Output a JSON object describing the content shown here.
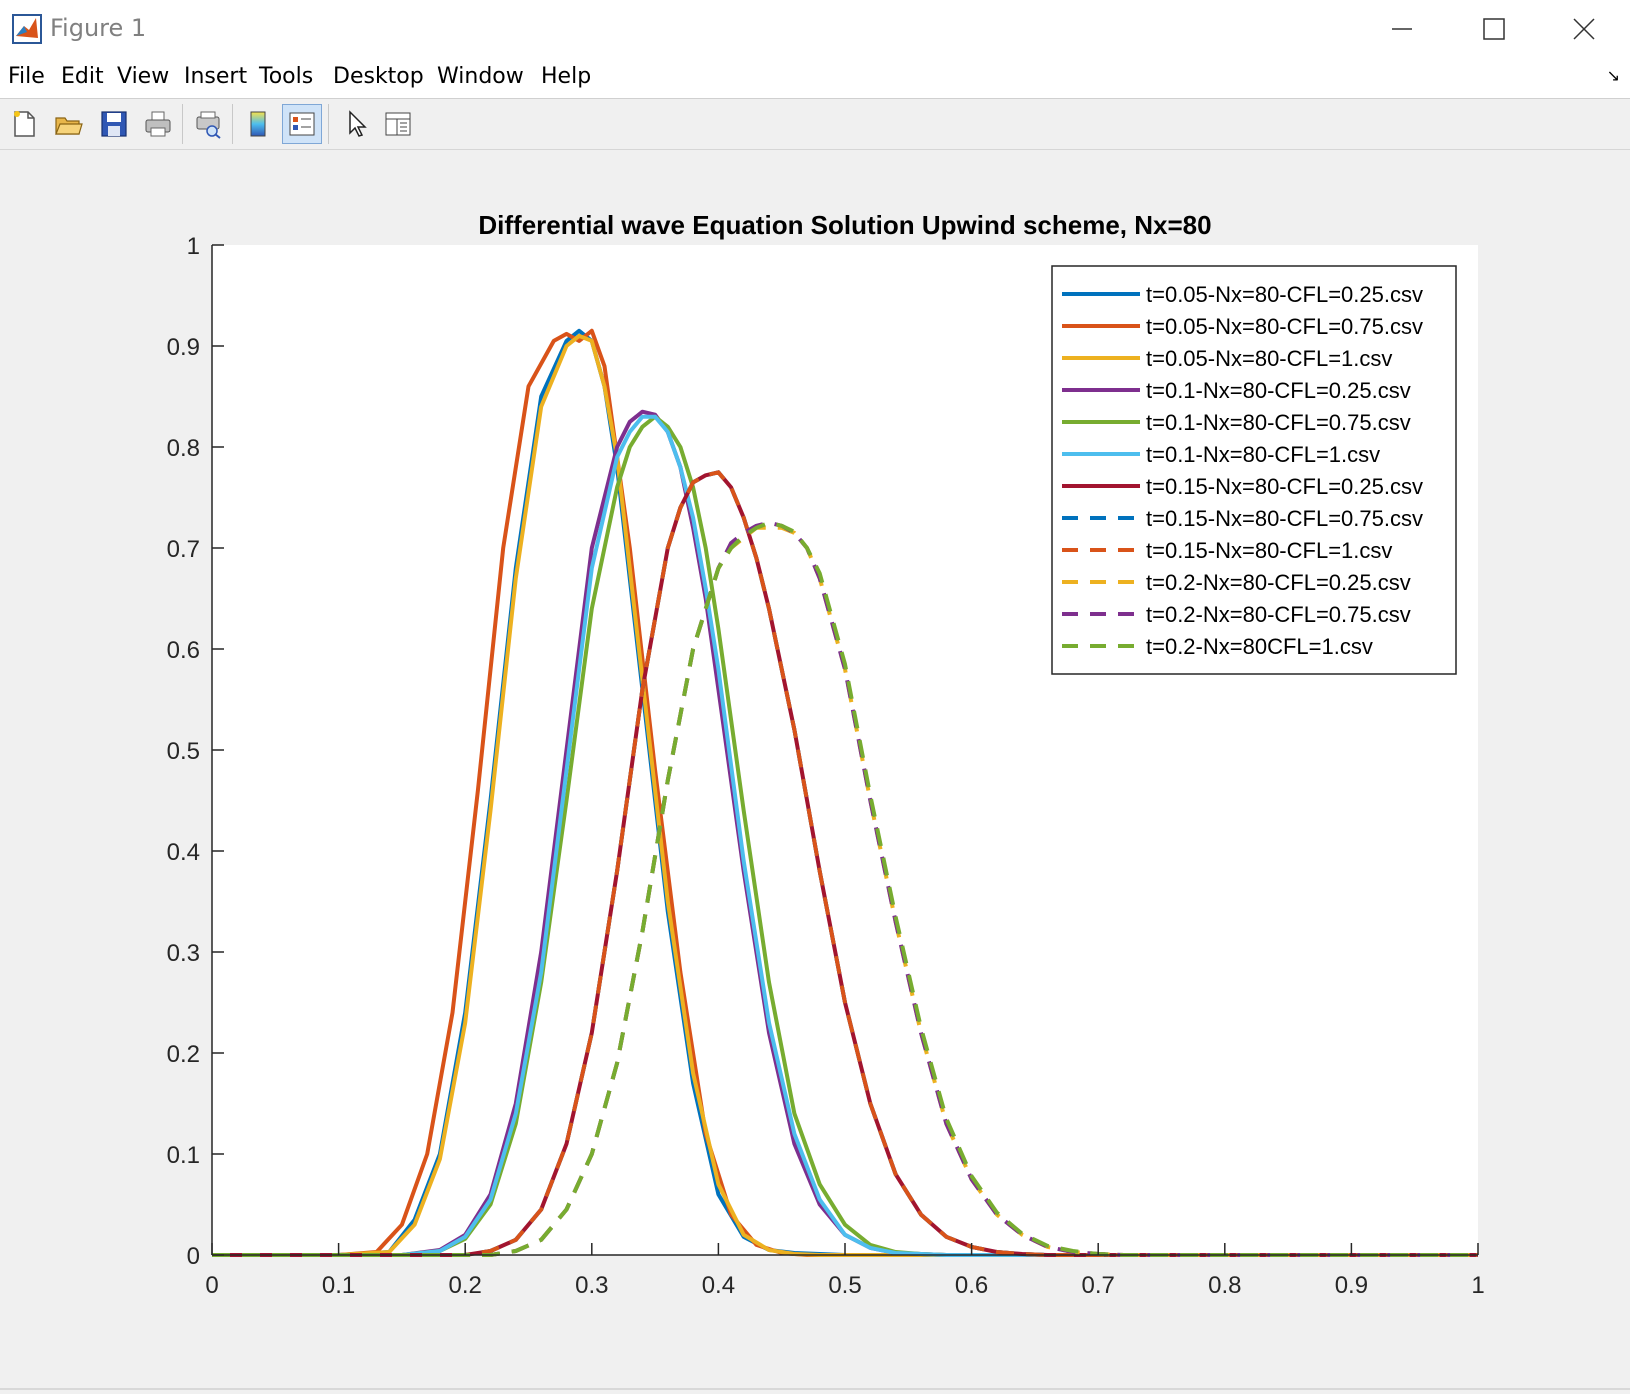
{
  "window": {
    "title": "Figure 1"
  },
  "menu": [
    "File",
    "Edit",
    "View",
    "Insert",
    "Tools",
    "Desktop",
    "Window",
    "Help"
  ],
  "toolbar": {
    "icons": [
      "new-figure-icon",
      "open-file-icon",
      "save-icon",
      "print-icon",
      "print-preview-icon",
      "colorbar-icon",
      "legend-icon",
      "edit-plot-icon",
      "property-inspector-icon"
    ]
  },
  "chart_data": {
    "type": "line",
    "title": "Differential wave Equation Solution Upwind scheme, Nx=80",
    "xlabel": "",
    "ylabel": "",
    "xlim": [
      0,
      1
    ],
    "ylim": [
      0,
      1
    ],
    "x_ticks": [
      "0",
      "0.1",
      "0.2",
      "0.3",
      "0.4",
      "0.5",
      "0.6",
      "0.7",
      "0.8",
      "0.9",
      "1"
    ],
    "y_ticks": [
      "0",
      "0.1",
      "0.2",
      "0.3",
      "0.4",
      "0.5",
      "0.6",
      "0.7",
      "0.8",
      "0.9",
      "1"
    ],
    "grid": false,
    "legend_position": "top-right",
    "series": [
      {
        "name": "t=0.05-Nx=80-CFL=0.25.csv",
        "color": "#0072BD",
        "dashed": false,
        "x": [
          0.0,
          0.1,
          0.14,
          0.16,
          0.18,
          0.2,
          0.22,
          0.24,
          0.26,
          0.28,
          0.29,
          0.3,
          0.31,
          0.32,
          0.34,
          0.36,
          0.38,
          0.4,
          0.42,
          0.44,
          0.46,
          0.48,
          0.5,
          0.55,
          1.0
        ],
        "y": [
          0,
          0,
          0.003,
          0.035,
          0.1,
          0.24,
          0.45,
          0.68,
          0.85,
          0.905,
          0.915,
          0.905,
          0.86,
          0.78,
          0.56,
          0.34,
          0.17,
          0.06,
          0.018,
          0.005,
          0.002,
          0.001,
          0,
          0,
          0
        ]
      },
      {
        "name": "t=0.05-Nx=80-CFL=0.75.csv",
        "color": "#D95319",
        "dashed": false,
        "x": [
          0.0,
          0.1,
          0.13,
          0.15,
          0.17,
          0.19,
          0.21,
          0.23,
          0.25,
          0.27,
          0.28,
          0.29,
          0.3,
          0.31,
          0.33,
          0.35,
          0.37,
          0.39,
          0.41,
          0.43,
          0.45,
          0.47,
          0.5,
          1.0
        ],
        "y": [
          0,
          0,
          0.003,
          0.03,
          0.1,
          0.24,
          0.46,
          0.7,
          0.86,
          0.905,
          0.912,
          0.905,
          0.915,
          0.88,
          0.7,
          0.48,
          0.28,
          0.12,
          0.04,
          0.01,
          0.002,
          0,
          0,
          0
        ]
      },
      {
        "name": "t=0.05-Nx=80-CFL=1.csv",
        "color": "#EDB120",
        "dashed": false,
        "x": [
          0.0,
          0.1,
          0.14,
          0.16,
          0.18,
          0.2,
          0.22,
          0.24,
          0.26,
          0.28,
          0.29,
          0.3,
          0.31,
          0.32,
          0.34,
          0.36,
          0.38,
          0.4,
          0.42,
          0.44,
          0.46,
          0.48,
          0.5,
          1.0
        ],
        "y": [
          0,
          0,
          0.003,
          0.03,
          0.095,
          0.23,
          0.44,
          0.67,
          0.84,
          0.9,
          0.91,
          0.905,
          0.86,
          0.79,
          0.57,
          0.35,
          0.18,
          0.07,
          0.02,
          0.005,
          0.001,
          0,
          0,
          0
        ]
      },
      {
        "name": "t=0.1-Nx=80-CFL=0.25.csv",
        "color": "#7E2F8E",
        "dashed": false,
        "x": [
          0.0,
          0.15,
          0.18,
          0.2,
          0.22,
          0.24,
          0.26,
          0.28,
          0.3,
          0.32,
          0.33,
          0.34,
          0.35,
          0.36,
          0.37,
          0.38,
          0.39,
          0.4,
          0.42,
          0.44,
          0.46,
          0.48,
          0.5,
          0.52,
          0.54,
          0.56,
          0.58,
          0.62,
          1.0
        ],
        "y": [
          0,
          0,
          0.005,
          0.02,
          0.06,
          0.15,
          0.3,
          0.5,
          0.7,
          0.8,
          0.825,
          0.835,
          0.832,
          0.815,
          0.78,
          0.72,
          0.65,
          0.56,
          0.38,
          0.22,
          0.11,
          0.05,
          0.02,
          0.007,
          0.002,
          0.001,
          0,
          0,
          0
        ]
      },
      {
        "name": "t=0.1-Nx=80-CFL=0.75.csv",
        "color": "#77AC30",
        "dashed": false,
        "x": [
          0.0,
          0.15,
          0.18,
          0.2,
          0.22,
          0.24,
          0.26,
          0.28,
          0.3,
          0.32,
          0.33,
          0.34,
          0.35,
          0.36,
          0.37,
          0.38,
          0.39,
          0.4,
          0.42,
          0.44,
          0.46,
          0.48,
          0.5,
          0.52,
          0.54,
          0.56,
          0.58,
          0.62,
          1.0
        ],
        "y": [
          0,
          0,
          0.004,
          0.016,
          0.05,
          0.13,
          0.27,
          0.45,
          0.64,
          0.76,
          0.8,
          0.82,
          0.83,
          0.82,
          0.8,
          0.76,
          0.7,
          0.62,
          0.44,
          0.27,
          0.14,
          0.07,
          0.03,
          0.01,
          0.003,
          0.001,
          0,
          0,
          0
        ]
      },
      {
        "name": "t=0.1-Nx=80-CFL=1.csv",
        "color": "#4DBEEE",
        "dashed": false,
        "x": [
          0.0,
          0.15,
          0.18,
          0.2,
          0.22,
          0.24,
          0.26,
          0.28,
          0.3,
          0.32,
          0.33,
          0.34,
          0.35,
          0.36,
          0.37,
          0.38,
          0.39,
          0.4,
          0.42,
          0.44,
          0.46,
          0.48,
          0.5,
          0.52,
          0.54,
          0.56,
          0.58,
          0.62,
          1.0
        ],
        "y": [
          0,
          0,
          0.004,
          0.018,
          0.055,
          0.14,
          0.28,
          0.48,
          0.68,
          0.79,
          0.815,
          0.83,
          0.83,
          0.815,
          0.78,
          0.73,
          0.66,
          0.58,
          0.39,
          0.23,
          0.12,
          0.055,
          0.02,
          0.007,
          0.002,
          0.001,
          0,
          0,
          0
        ]
      },
      {
        "name": "t=0.15-Nx=80-CFL=0.25.csv",
        "color": "#A2142F",
        "dashed": false,
        "x": [
          0.0,
          0.2,
          0.22,
          0.24,
          0.26,
          0.28,
          0.3,
          0.32,
          0.34,
          0.36,
          0.37,
          0.38,
          0.39,
          0.4,
          0.41,
          0.42,
          0.43,
          0.44,
          0.46,
          0.48,
          0.5,
          0.52,
          0.54,
          0.56,
          0.58,
          0.6,
          0.62,
          0.64,
          0.66,
          0.7,
          1.0
        ],
        "y": [
          0,
          0,
          0.004,
          0.015,
          0.045,
          0.11,
          0.22,
          0.38,
          0.56,
          0.7,
          0.74,
          0.765,
          0.772,
          0.775,
          0.76,
          0.73,
          0.69,
          0.64,
          0.52,
          0.38,
          0.25,
          0.15,
          0.08,
          0.04,
          0.018,
          0.008,
          0.003,
          0.001,
          0,
          0,
          0
        ]
      },
      {
        "name": "t=0.15-Nx=80-CFL=0.75.csv",
        "color": "#0072BD",
        "dashed": true,
        "x": [
          0.0,
          0.2,
          0.22,
          0.24,
          0.26,
          0.28,
          0.3,
          0.32,
          0.34,
          0.36,
          0.37,
          0.38,
          0.39,
          0.4,
          0.41,
          0.42,
          0.43,
          0.44,
          0.46,
          0.48,
          0.5,
          0.52,
          0.54,
          0.56,
          0.58,
          0.6,
          0.62,
          0.64,
          0.66,
          0.7,
          1.0
        ],
        "y": [
          0,
          0,
          0.004,
          0.015,
          0.045,
          0.11,
          0.22,
          0.38,
          0.56,
          0.7,
          0.74,
          0.765,
          0.772,
          0.775,
          0.76,
          0.73,
          0.69,
          0.64,
          0.52,
          0.38,
          0.25,
          0.15,
          0.08,
          0.04,
          0.018,
          0.008,
          0.003,
          0.001,
          0,
          0,
          0
        ]
      },
      {
        "name": "t=0.15-Nx=80-CFL=1.csv",
        "color": "#D95319",
        "dashed": true,
        "x": [
          0.0,
          0.2,
          0.22,
          0.24,
          0.26,
          0.28,
          0.3,
          0.32,
          0.34,
          0.36,
          0.37,
          0.38,
          0.39,
          0.4,
          0.41,
          0.42,
          0.43,
          0.44,
          0.46,
          0.48,
          0.5,
          0.52,
          0.54,
          0.56,
          0.58,
          0.6,
          0.62,
          0.64,
          0.66,
          0.7,
          1.0
        ],
        "y": [
          0,
          0,
          0.004,
          0.015,
          0.045,
          0.11,
          0.22,
          0.38,
          0.56,
          0.7,
          0.74,
          0.765,
          0.772,
          0.775,
          0.76,
          0.73,
          0.69,
          0.64,
          0.52,
          0.38,
          0.25,
          0.15,
          0.08,
          0.04,
          0.018,
          0.008,
          0.003,
          0.001,
          0,
          0,
          0
        ]
      },
      {
        "name": "t=0.2-Nx=80-CFL=0.25.csv",
        "color": "#EDB120",
        "dashed": true,
        "x": [
          0.0,
          0.22,
          0.24,
          0.26,
          0.28,
          0.3,
          0.32,
          0.34,
          0.36,
          0.38,
          0.4,
          0.41,
          0.42,
          0.43,
          0.44,
          0.45,
          0.46,
          0.47,
          0.48,
          0.5,
          0.52,
          0.54,
          0.56,
          0.58,
          0.6,
          0.62,
          0.64,
          0.66,
          0.68,
          0.7,
          0.72,
          1.0
        ],
        "y": [
          0,
          0,
          0.004,
          0.015,
          0.045,
          0.1,
          0.19,
          0.32,
          0.47,
          0.6,
          0.68,
          0.7,
          0.71,
          0.72,
          0.72,
          0.72,
          0.715,
          0.7,
          0.67,
          0.58,
          0.45,
          0.33,
          0.22,
          0.13,
          0.075,
          0.04,
          0.02,
          0.008,
          0.003,
          0.001,
          0,
          0
        ]
      },
      {
        "name": "t=0.2-Nx=80-CFL=0.75.csv",
        "color": "#7E2F8E",
        "dashed": true,
        "x": [
          0.0,
          0.22,
          0.24,
          0.26,
          0.28,
          0.3,
          0.32,
          0.34,
          0.36,
          0.38,
          0.4,
          0.41,
          0.42,
          0.43,
          0.44,
          0.45,
          0.46,
          0.47,
          0.48,
          0.5,
          0.52,
          0.54,
          0.56,
          0.58,
          0.6,
          0.62,
          0.64,
          0.66,
          0.68,
          0.7,
          0.72,
          1.0
        ],
        "y": [
          0,
          0,
          0.004,
          0.015,
          0.045,
          0.1,
          0.19,
          0.32,
          0.47,
          0.6,
          0.68,
          0.705,
          0.715,
          0.722,
          0.725,
          0.722,
          0.715,
          0.7,
          0.67,
          0.58,
          0.45,
          0.33,
          0.22,
          0.13,
          0.075,
          0.04,
          0.02,
          0.008,
          0.003,
          0.001,
          0,
          0
        ]
      },
      {
        "name": "t=0.2-Nx=80CFL=1.csv",
        "color": "#77AC30",
        "dashed": true,
        "x": [
          0.0,
          0.22,
          0.24,
          0.26,
          0.28,
          0.3,
          0.32,
          0.34,
          0.36,
          0.38,
          0.4,
          0.41,
          0.42,
          0.43,
          0.44,
          0.45,
          0.46,
          0.47,
          0.48,
          0.5,
          0.52,
          0.54,
          0.56,
          0.58,
          0.6,
          0.62,
          0.64,
          0.66,
          0.68,
          0.7,
          0.72,
          1.0
        ],
        "y": [
          0,
          0,
          0.004,
          0.015,
          0.045,
          0.1,
          0.19,
          0.32,
          0.47,
          0.6,
          0.68,
          0.7,
          0.712,
          0.72,
          0.725,
          0.722,
          0.716,
          0.7,
          0.675,
          0.585,
          0.455,
          0.335,
          0.225,
          0.135,
          0.078,
          0.042,
          0.021,
          0.009,
          0.004,
          0.001,
          0,
          0
        ]
      }
    ]
  }
}
